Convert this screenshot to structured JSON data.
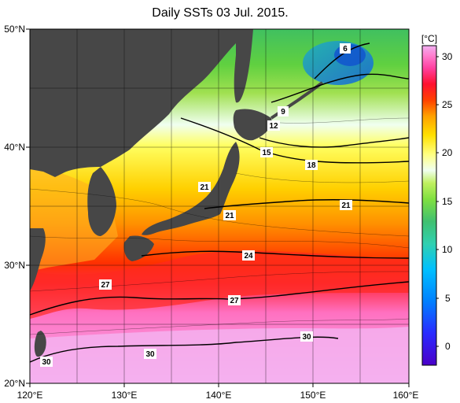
{
  "title": "Daily SSTs 03 Jul. 2015.",
  "map": {
    "lat_labels": [
      "50°N",
      "40°N",
      "30°N",
      "20°N"
    ],
    "lon_labels": [
      "120°E",
      "130°E",
      "140°E",
      "150°E",
      "160°E"
    ],
    "extent": {
      "lon": [
        120,
        160
      ],
      "lat": [
        20,
        50
      ]
    },
    "grid_step_deg": 5,
    "land_color": "#474747"
  },
  "isotherms": [
    {
      "label": "6"
    },
    {
      "label": "9"
    },
    {
      "label": "12"
    },
    {
      "label": "15"
    },
    {
      "label": "18"
    },
    {
      "label": "21"
    },
    {
      "label": "21"
    },
    {
      "label": "21"
    },
    {
      "label": "24"
    },
    {
      "label": "27"
    },
    {
      "label": "27"
    },
    {
      "label": "30"
    },
    {
      "label": "30"
    },
    {
      "label": "30"
    }
  ],
  "colorbar": {
    "unit": "[°C]",
    "ticks": [
      "30",
      "25",
      "20",
      "15",
      "10",
      "5",
      "0"
    ],
    "range": [
      -2,
      32
    ],
    "colors": [
      "#4a00c8",
      "#2a2aff",
      "#0080ff",
      "#00c0ff",
      "#30d0b0",
      "#40c070",
      "#80e040",
      "#c0f060",
      "#f0fff0",
      "#ffff80",
      "#ffe000",
      "#ffa000",
      "#ff4000",
      "#ff1030",
      "#ff40a0",
      "#ff80d0",
      "#f0b0f0"
    ]
  }
}
